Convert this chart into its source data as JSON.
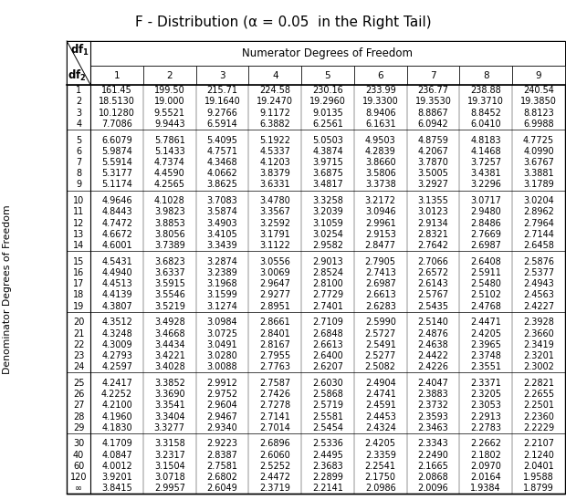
{
  "title": "F - Distribution (α = 0.05  in the Right Tail)",
  "col_labels": [
    "1",
    "2",
    "3",
    "4",
    "5",
    "6",
    "7",
    "8",
    "9"
  ],
  "row_labels": [
    "1",
    "2",
    "3",
    "4",
    "5",
    "6",
    "7",
    "8",
    "9",
    "10",
    "11",
    "12",
    "13",
    "14",
    "15",
    "16",
    "17",
    "18",
    "19",
    "20",
    "21",
    "22",
    "23",
    "24",
    "25",
    "26",
    "27",
    "28",
    "29",
    "30",
    "40",
    "60",
    "120",
    "∞"
  ],
  "side_label": "Denominator Degrees of Freedom",
  "numerator_label": "Numerator Degrees of Freedom",
  "data": [
    [
      161.45,
      199.5,
      215.71,
      224.58,
      230.16,
      233.99,
      236.77,
      238.88,
      240.54
    ],
    [
      18.513,
      19.0,
      19.164,
      19.247,
      19.296,
      19.33,
      19.353,
      19.371,
      19.385
    ],
    [
      10.128,
      9.5521,
      9.2766,
      9.1172,
      9.0135,
      8.9406,
      8.8867,
      8.8452,
      8.8123
    ],
    [
      7.7086,
      9.9443,
      6.5914,
      6.3882,
      6.2561,
      6.1631,
      6.0942,
      6.041,
      6.9988
    ],
    [
      6.6079,
      5.7861,
      5.4095,
      5.1922,
      5.0503,
      4.9503,
      4.8759,
      4.8183,
      4.7725
    ],
    [
      5.9874,
      5.1433,
      4.7571,
      4.5337,
      4.3874,
      4.2839,
      4.2067,
      4.1468,
      4.099
    ],
    [
      5.5914,
      4.7374,
      4.3468,
      4.1203,
      3.9715,
      3.866,
      3.787,
      3.7257,
      3.6767
    ],
    [
      5.3177,
      4.459,
      4.0662,
      3.8379,
      3.6875,
      3.5806,
      3.5005,
      3.4381,
      3.3881
    ],
    [
      5.1174,
      4.2565,
      3.8625,
      3.6331,
      3.4817,
      3.3738,
      3.2927,
      3.2296,
      3.1789
    ],
    [
      4.9646,
      4.1028,
      3.7083,
      3.478,
      3.3258,
      3.2172,
      3.1355,
      3.0717,
      3.0204
    ],
    [
      4.8443,
      3.9823,
      3.5874,
      3.3567,
      3.2039,
      3.0946,
      3.0123,
      2.948,
      2.8962
    ],
    [
      4.7472,
      3.8853,
      3.4903,
      3.2592,
      3.1059,
      2.9961,
      2.9134,
      2.8486,
      2.7964
    ],
    [
      4.6672,
      3.8056,
      3.4105,
      3.1791,
      3.0254,
      2.9153,
      2.8321,
      2.7669,
      2.7144
    ],
    [
      4.6001,
      3.7389,
      3.3439,
      3.1122,
      2.9582,
      2.8477,
      2.7642,
      2.6987,
      2.6458
    ],
    [
      4.5431,
      3.6823,
      3.2874,
      3.0556,
      2.9013,
      2.7905,
      2.7066,
      2.6408,
      2.5876
    ],
    [
      4.494,
      3.6337,
      3.2389,
      3.0069,
      2.8524,
      2.7413,
      2.6572,
      2.5911,
      2.5377
    ],
    [
      4.4513,
      3.5915,
      3.1968,
      2.9647,
      2.81,
      2.6987,
      2.6143,
      2.548,
      2.4943
    ],
    [
      4.4139,
      3.5546,
      3.1599,
      2.9277,
      2.7729,
      2.6613,
      2.5767,
      2.5102,
      2.4563
    ],
    [
      4.3807,
      3.5219,
      3.1274,
      2.8951,
      2.7401,
      2.6283,
      2.5435,
      2.4768,
      2.4227
    ],
    [
      4.3512,
      3.4928,
      3.0984,
      2.8661,
      2.7109,
      2.599,
      2.514,
      2.4471,
      2.3928
    ],
    [
      4.3248,
      3.4668,
      3.0725,
      2.8401,
      2.6848,
      2.5727,
      2.4876,
      2.4205,
      2.366
    ],
    [
      4.3009,
      3.4434,
      3.0491,
      2.8167,
      2.6613,
      2.5491,
      2.4638,
      2.3965,
      2.3419
    ],
    [
      4.2793,
      3.4221,
      3.028,
      2.7955,
      2.64,
      2.5277,
      2.4422,
      2.3748,
      2.3201
    ],
    [
      4.2597,
      3.4028,
      3.0088,
      2.7763,
      2.6207,
      2.5082,
      2.4226,
      2.3551,
      2.3002
    ],
    [
      4.2417,
      3.3852,
      2.9912,
      2.7587,
      2.603,
      2.4904,
      2.4047,
      2.3371,
      2.2821
    ],
    [
      4.2252,
      3.369,
      2.9752,
      2.7426,
      2.5868,
      2.4741,
      2.3883,
      2.3205,
      2.2655
    ],
    [
      4.21,
      3.3541,
      2.9604,
      2.7278,
      2.5719,
      2.4591,
      2.3732,
      2.3053,
      2.2501
    ],
    [
      4.196,
      3.3404,
      2.9467,
      2.7141,
      2.5581,
      2.4453,
      2.3593,
      2.2913,
      2.236
    ],
    [
      4.183,
      3.3277,
      2.934,
      2.7014,
      2.5454,
      2.4324,
      2.3463,
      2.2783,
      2.2229
    ],
    [
      4.1709,
      3.3158,
      2.9223,
      2.6896,
      2.5336,
      2.4205,
      2.3343,
      2.2662,
      2.2107
    ],
    [
      4.0847,
      3.2317,
      2.8387,
      2.606,
      2.4495,
      2.3359,
      2.249,
      2.1802,
      2.124
    ],
    [
      4.0012,
      3.1504,
      2.7581,
      2.5252,
      2.3683,
      2.2541,
      2.1665,
      2.097,
      2.0401
    ],
    [
      3.9201,
      3.0718,
      2.6802,
      2.4472,
      2.2899,
      2.175,
      2.0868,
      2.0164,
      1.9588
    ],
    [
      3.8415,
      2.9957,
      2.6049,
      2.3719,
      2.2141,
      2.0986,
      2.0096,
      1.9384,
      1.8799
    ]
  ],
  "groups": [
    [
      0,
      1,
      2,
      3
    ],
    [
      4,
      5,
      6,
      7,
      8
    ],
    [
      9,
      10,
      11,
      12,
      13
    ],
    [
      14,
      15,
      16,
      17,
      18
    ],
    [
      19,
      20,
      21,
      22,
      23
    ],
    [
      24,
      25,
      26,
      27,
      28
    ],
    [
      29,
      30,
      31,
      32,
      33
    ]
  ],
  "bg_color": "#ffffff",
  "font_size": 7.0,
  "title_font_size": 11.0
}
